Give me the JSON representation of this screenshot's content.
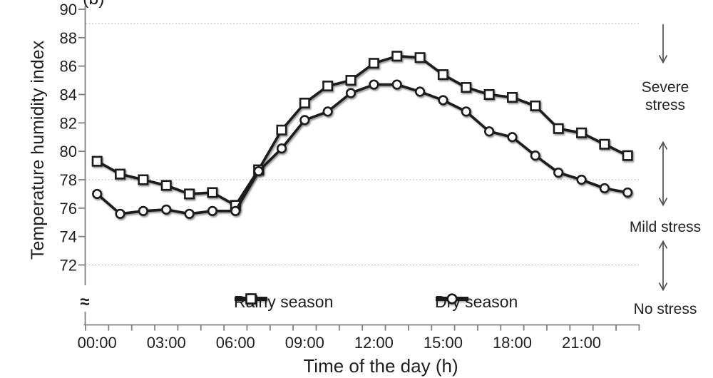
{
  "figure_label": "(b)",
  "axes": {
    "y_title": "Temperature humidity index",
    "x_title": "Time of the day (h)",
    "break_symbol": "≈"
  },
  "legend": {
    "rainy_label": "Rainy season",
    "dry_label": "Dry season"
  },
  "stress_labels": {
    "severe": "Severe stress",
    "mild": "Mild stress",
    "none": "No stress"
  },
  "colors": {
    "series": "#1b1b1b",
    "marker_fill": "#ffffff",
    "grid": "#b9b9b9",
    "axis": "#7f7f7f",
    "text": "#1f1f1f",
    "arrow": "#4f4f4f"
  },
  "chart_data": {
    "type": "line",
    "title": "",
    "xlabel": "Time of the day (h)",
    "ylabel": "Temperature humidity index",
    "ylim": [
      72,
      90
    ],
    "y_axis_break_below": 72,
    "y_ticks": [
      90,
      88,
      86,
      84,
      82,
      80,
      78,
      76,
      74,
      72
    ],
    "reference_lines_dashed": [
      89,
      78,
      72
    ],
    "grid": "horizontal dashed reference lines only",
    "legend_position": "bottom inside",
    "x_label_every_hours": 3,
    "x": [
      "00:00",
      "01:00",
      "02:00",
      "03:00",
      "04:00",
      "05:00",
      "06:00",
      "07:00",
      "08:00",
      "09:00",
      "10:00",
      "11:00",
      "12:00",
      "13:00",
      "14:00",
      "15:00",
      "16:00",
      "17:00",
      "18:00",
      "19:00",
      "20:00",
      "21:00",
      "22:00",
      "23:00"
    ],
    "series": [
      {
        "name": "Rainy season",
        "marker": "square",
        "values": [
          79.3,
          78.4,
          78.0,
          77.6,
          77.0,
          77.1,
          76.2,
          78.7,
          81.5,
          83.4,
          84.6,
          85.0,
          86.2,
          86.7,
          86.6,
          85.4,
          84.5,
          84.0,
          83.8,
          83.2,
          81.6,
          81.3,
          80.5,
          79.7
        ]
      },
      {
        "name": "Dry season",
        "marker": "circle",
        "values": [
          77.0,
          75.6,
          75.8,
          75.9,
          75.6,
          75.8,
          75.8,
          78.6,
          80.2,
          82.2,
          82.8,
          84.1,
          84.7,
          84.7,
          84.2,
          83.6,
          82.8,
          81.4,
          81.0,
          79.7,
          78.5,
          78.0,
          77.4,
          77.1
        ]
      }
    ],
    "right_annotations": [
      {
        "label": "Severe stress",
        "arrow_above": "down",
        "arrow_below": "up"
      },
      {
        "label": "Mild stress",
        "arrow_above": "down",
        "arrow_below": "up-down"
      },
      {
        "label": "No stress",
        "arrow_above": "down"
      }
    ]
  }
}
